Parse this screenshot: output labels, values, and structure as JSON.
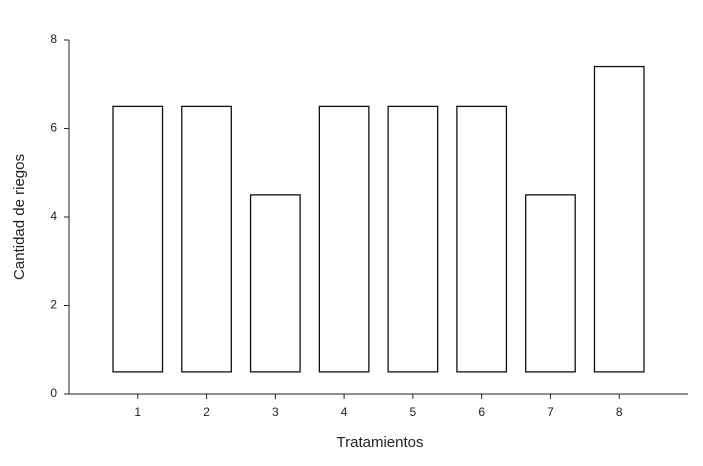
{
  "chart_data": {
    "type": "floating-bar",
    "x_label": "Tratamientos",
    "y_label": "Cantidad de riegos",
    "x": [
      1,
      2,
      3,
      4,
      5,
      6,
      7,
      8
    ],
    "low": [
      0.5,
      0.5,
      0.5,
      0.5,
      0.5,
      0.5,
      0.5,
      0.5
    ],
    "high": [
      6.5,
      6.5,
      4.5,
      6.5,
      6.5,
      6.5,
      4.5,
      7.4
    ],
    "color": "#ffffff",
    "edge_color": "#111111",
    "xlim": [
      0,
      9
    ],
    "xticks": [
      1,
      2,
      3,
      4,
      5,
      6,
      7,
      8
    ],
    "ylim": [
      0,
      8
    ],
    "yticks": [
      0,
      2,
      4,
      6,
      8
    ],
    "grid": false
  }
}
